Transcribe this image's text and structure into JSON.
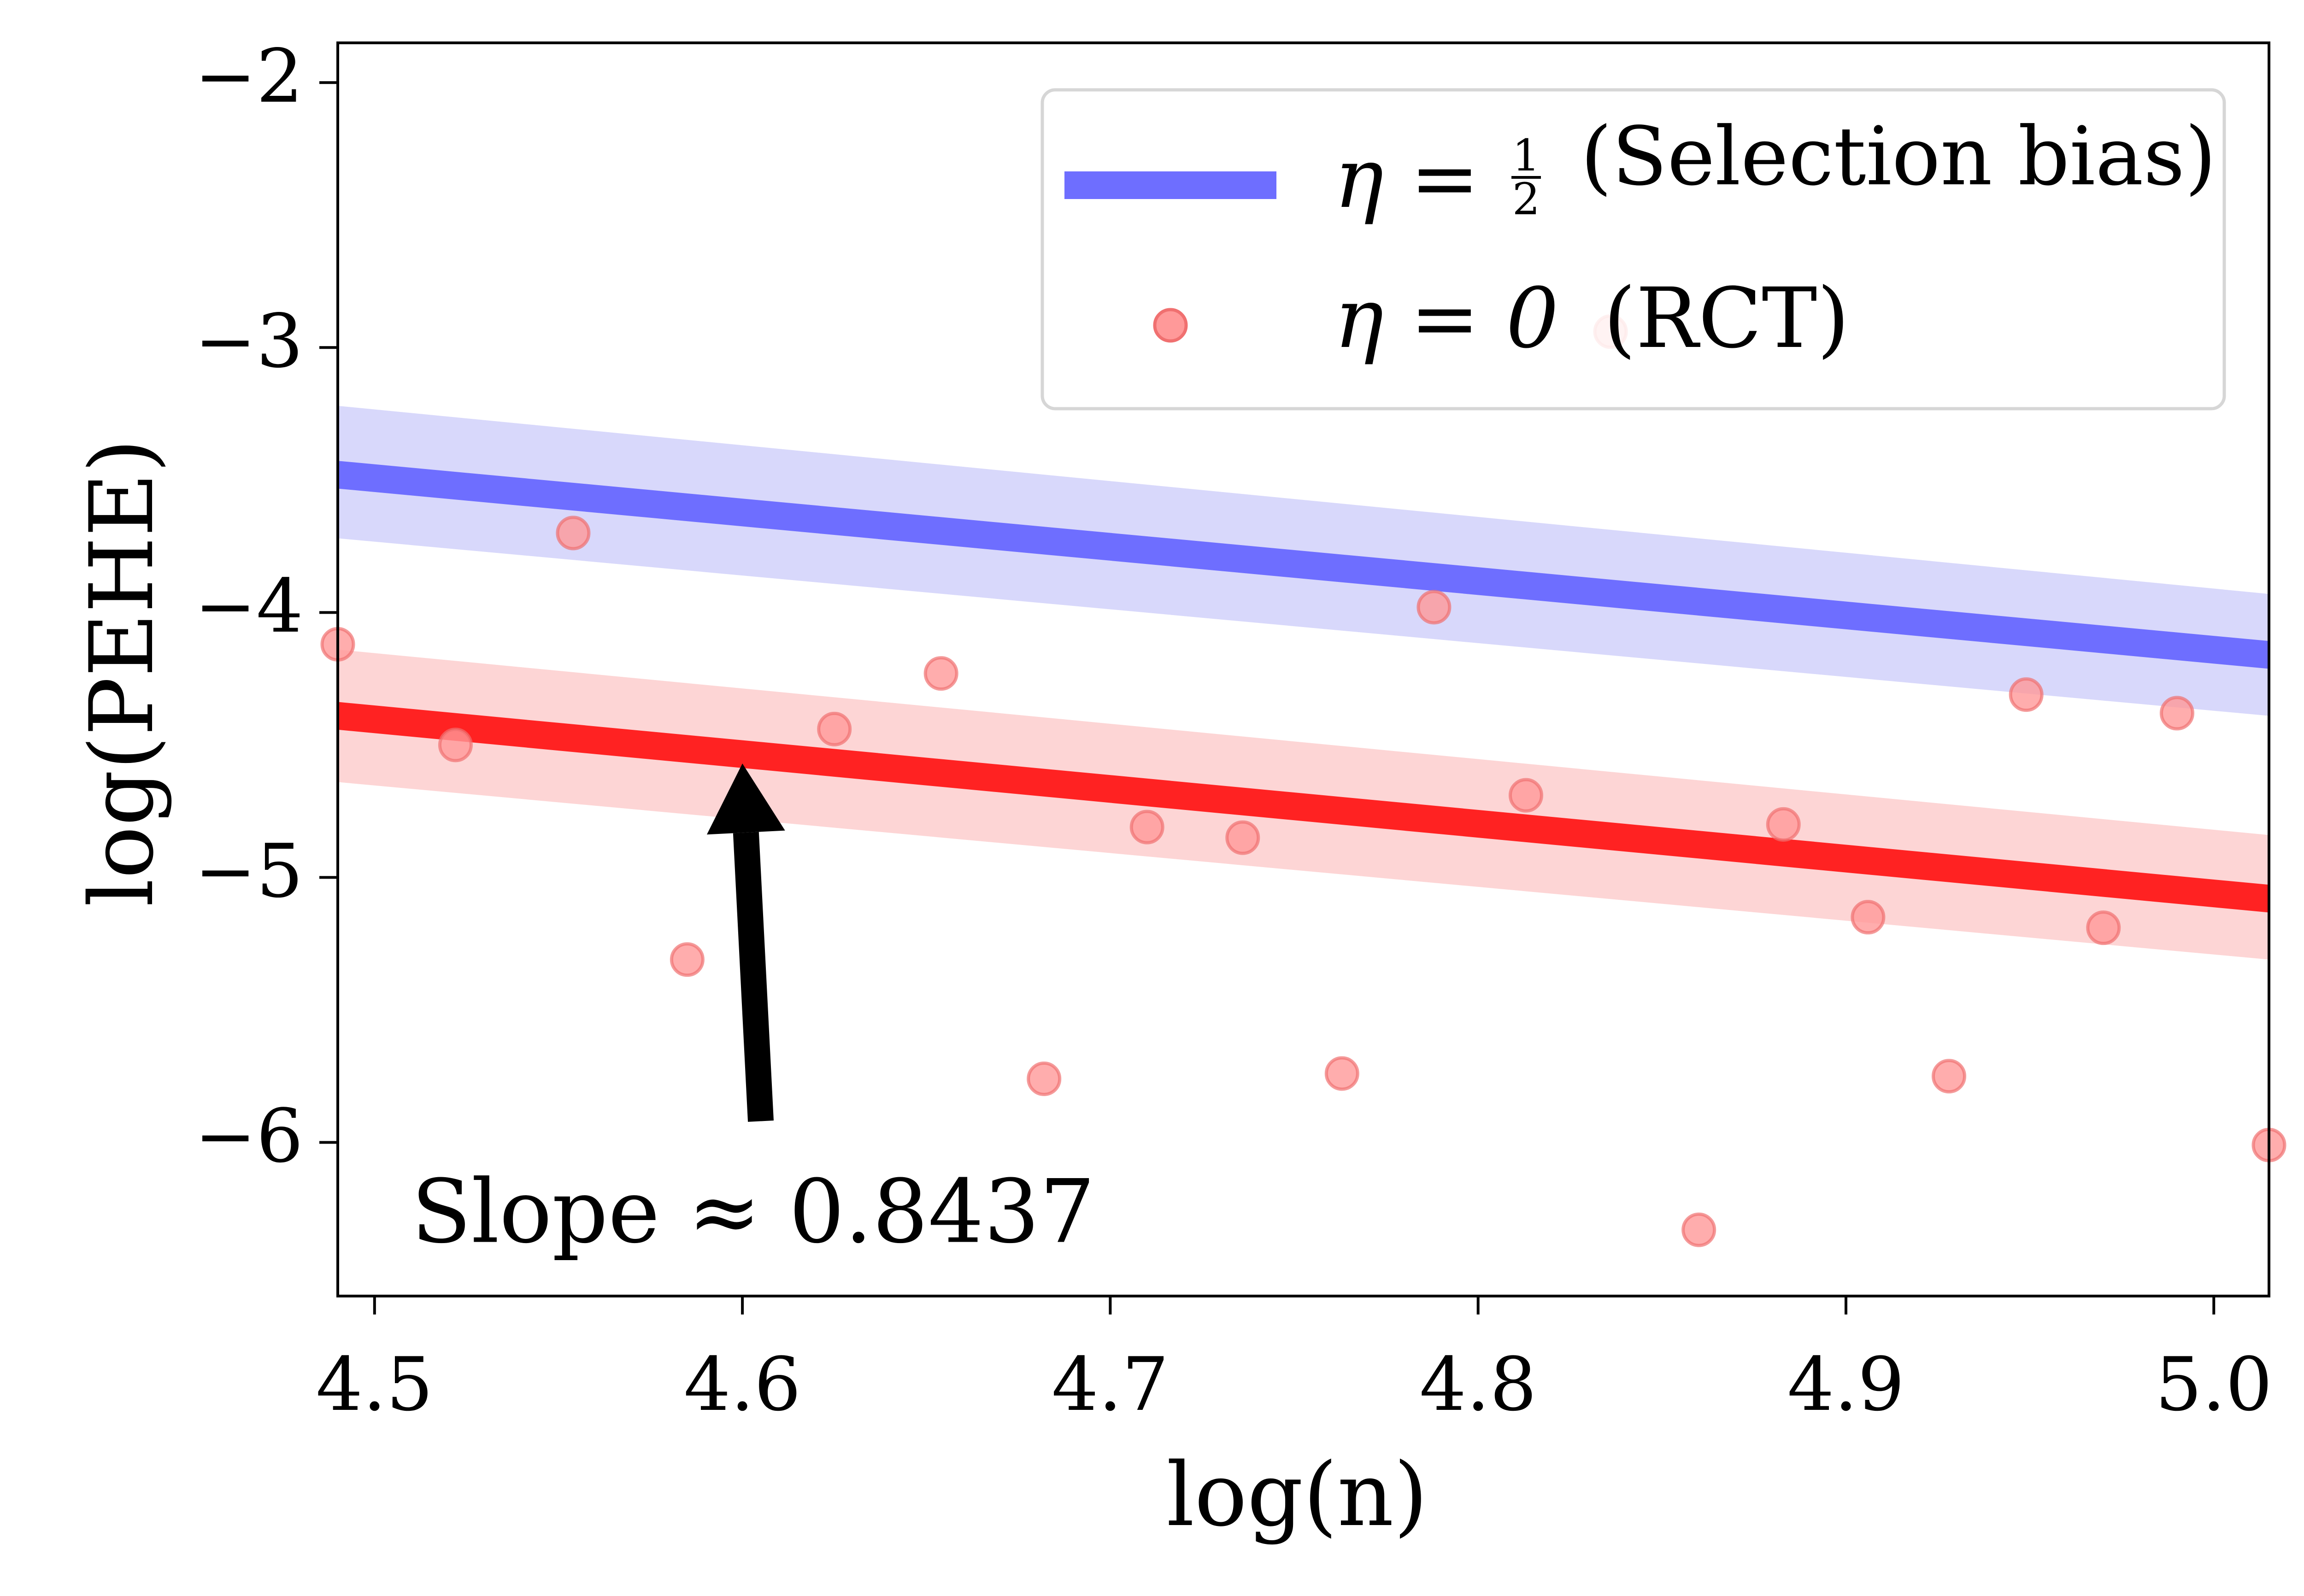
{
  "chart_data": {
    "type": "scatter",
    "xlabel": "log(n)",
    "ylabel": "log(PEHE)",
    "xlim": [
      4.49,
      5.015
    ],
    "ylim": [
      -6.58,
      -1.85
    ],
    "x_ticks": [
      {
        "value": 4.5,
        "label": "4.5"
      },
      {
        "value": 4.6,
        "label": "4.6"
      },
      {
        "value": 4.7,
        "label": "4.7"
      },
      {
        "value": 4.8,
        "label": "4.8"
      },
      {
        "value": 4.9,
        "label": "4.9"
      },
      {
        "value": 5.0,
        "label": "5.0"
      }
    ],
    "y_ticks": [
      {
        "value": -2,
        "label": "−2"
      },
      {
        "value": -3,
        "label": "−3"
      },
      {
        "value": -4,
        "label": "−4"
      },
      {
        "value": -5,
        "label": "−5"
      },
      {
        "value": -6,
        "label": "−6"
      }
    ],
    "grid": false,
    "legend_position": "top-right",
    "series": [
      {
        "name": "η = ½ (Selection bias)",
        "legend_math": "η =",
        "legend_frac_num": "1",
        "legend_frac_den": "2",
        "legend_rest": "(Selection bias)",
        "kind": "line",
        "color": "#6e6eff",
        "band_color": "#d8d8fb",
        "x": [
          4.49,
          5.015
        ],
        "y": [
          -3.48,
          -4.16
        ],
        "band_upper": [
          -3.22,
          -3.93
        ],
        "band_lower": [
          -3.72,
          -4.39
        ]
      },
      {
        "name": "η = 0 (RCT)",
        "legend_math": "η = 0",
        "legend_rest": "(RCT)",
        "kind": "line+scatter",
        "color": "#ff2222",
        "band_color": "#fdd5d5",
        "marker_color": "#ff9999",
        "x": [
          4.49,
          5.015
        ],
        "y": [
          -4.39,
          -5.08
        ],
        "band_upper": [
          -4.14,
          -4.84
        ],
        "band_lower": [
          -4.64,
          -5.31
        ],
        "points": [
          {
            "x": 4.49,
            "y": -4.12
          },
          {
            "x": 4.522,
            "y": -4.5
          },
          {
            "x": 4.554,
            "y": -3.7
          },
          {
            "x": 4.585,
            "y": -5.31
          },
          {
            "x": 4.625,
            "y": -4.44
          },
          {
            "x": 4.654,
            "y": -4.23
          },
          {
            "x": 4.682,
            "y": -5.76
          },
          {
            "x": 4.71,
            "y": -4.81
          },
          {
            "x": 4.736,
            "y": -4.85
          },
          {
            "x": 4.763,
            "y": -5.74
          },
          {
            "x": 4.788,
            "y": -3.98
          },
          {
            "x": 4.813,
            "y": -4.69
          },
          {
            "x": 4.836,
            "y": -2.94
          },
          {
            "x": 4.86,
            "y": -6.33
          },
          {
            "x": 4.883,
            "y": -4.8
          },
          {
            "x": 4.906,
            "y": -5.15
          },
          {
            "x": 4.928,
            "y": -5.75
          },
          {
            "x": 4.949,
            "y": -4.31
          },
          {
            "x": 4.97,
            "y": -5.19
          },
          {
            "x": 4.99,
            "y": -4.38
          },
          {
            "x": 5.015,
            "y": -6.01
          }
        ]
      }
    ],
    "annotations": [
      {
        "text": "Slope ≈ 0.8437",
        "x": 4.51,
        "y": -6.28,
        "arrow_from": [
          4.605,
          -5.92
        ],
        "arrow_to": [
          4.6,
          -4.57
        ]
      }
    ]
  }
}
